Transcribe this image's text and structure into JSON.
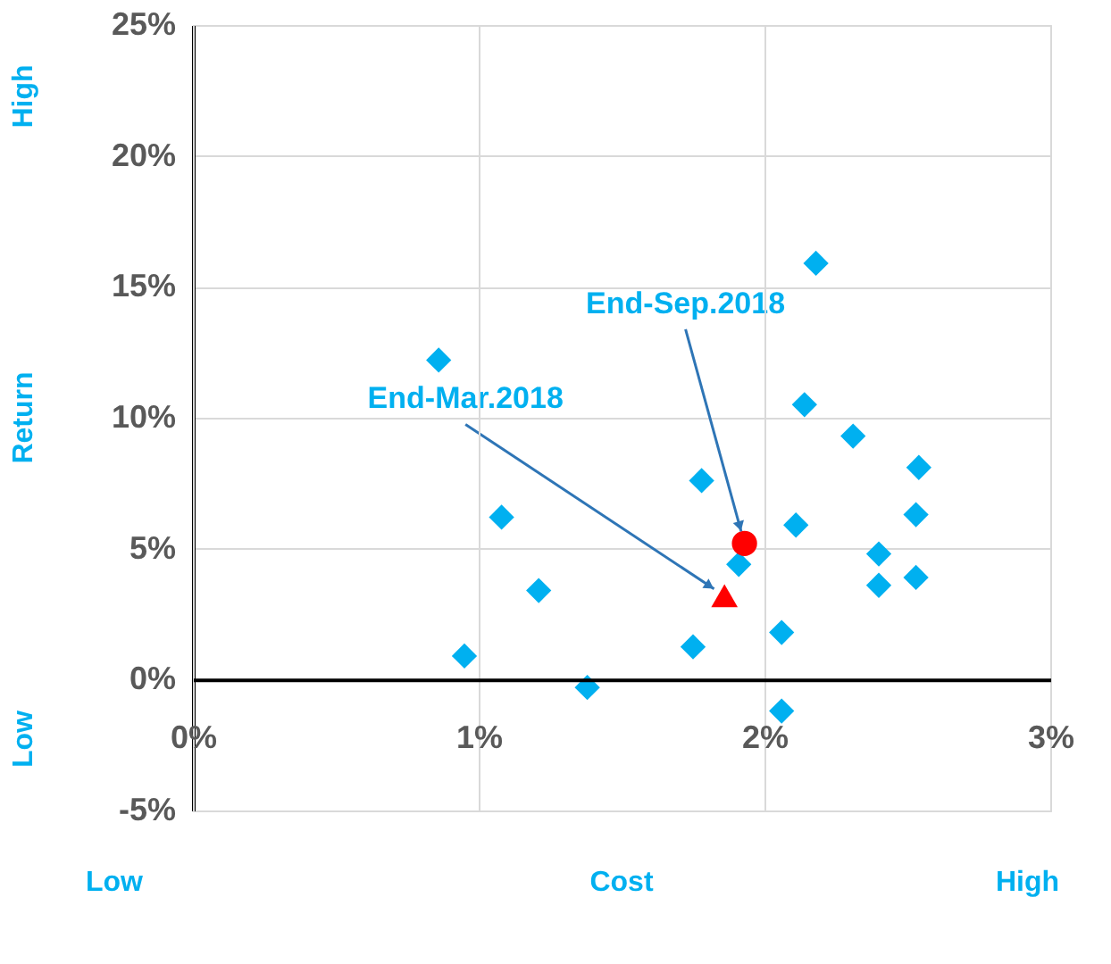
{
  "chart_data": {
    "type": "scatter",
    "xlabel": "Cost",
    "ylabel": "Return",
    "xlim": [
      0,
      3
    ],
    "xticks": [
      {
        "value": 0,
        "label": "0%"
      },
      {
        "value": 1,
        "label": "1%"
      },
      {
        "value": 2,
        "label": "2%"
      },
      {
        "value": 3,
        "label": "3%"
      }
    ],
    "ylim": [
      -5,
      25
    ],
    "yticks": [
      {
        "value": -5,
        "label": "-5%"
      },
      {
        "value": 0,
        "label": "0%"
      },
      {
        "value": 5,
        "label": "5%"
      },
      {
        "value": 10,
        "label": "10%"
      },
      {
        "value": 15,
        "label": "15%"
      },
      {
        "value": 20,
        "label": "20%"
      },
      {
        "value": 25,
        "label": "25%"
      }
    ],
    "grid": true,
    "series": [
      {
        "color": "#00b0f0",
        "marker": "diamond",
        "x": [
          0.86,
          0.95,
          1.08,
          1.21,
          1.38,
          1.78,
          1.75,
          1.91,
          2.06,
          2.06,
          2.11,
          2.14,
          2.18,
          2.31,
          2.4,
          2.4,
          2.53,
          2.53,
          2.54
        ],
        "values": [
          12.2,
          0.9,
          6.2,
          3.4,
          -0.3,
          7.6,
          1.25,
          4.4,
          1.8,
          -1.2,
          5.9,
          10.5,
          15.9,
          9.3,
          4.8,
          3.6,
          6.3,
          3.9,
          8.1
        ]
      },
      {
        "color": "#ff0000",
        "marker": "circle",
        "x": [
          1.93
        ],
        "values": [
          5.2
        ]
      },
      {
        "color": "#ff0000",
        "marker": "triangle",
        "x": [
          1.86
        ],
        "values": [
          3.2
        ]
      }
    ],
    "annotations": [
      {
        "text": "End-Mar.2018",
        "x": 1.86,
        "y": 3.2
      },
      {
        "text": "End-Sep.2018",
        "x": 1.93,
        "y": 5.2
      },
      "High",
      "Low",
      "Low",
      "High"
    ]
  }
}
